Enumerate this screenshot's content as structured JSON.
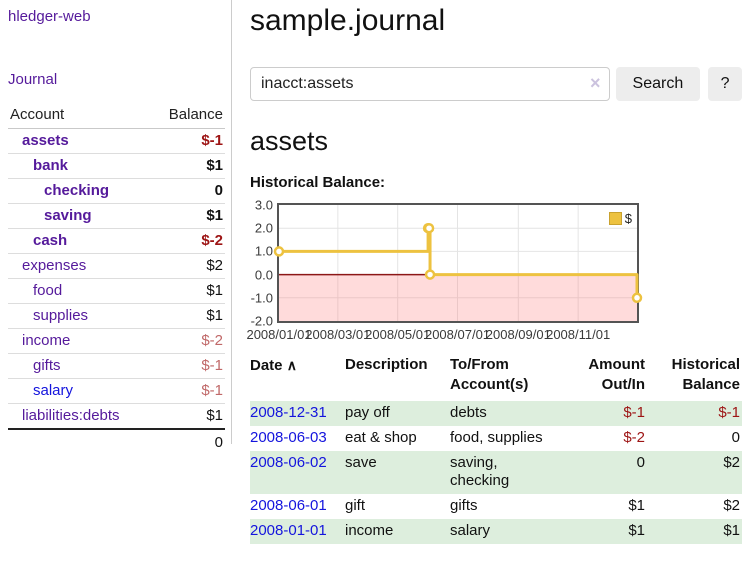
{
  "colors": {
    "accent_purple": "#551a9b",
    "link_blue": "#1414dd",
    "negative_strong": "#9d1414",
    "negative_soft": "#c06868",
    "row_green": "#ddeedd",
    "chart_gold": "#edc240",
    "chart_negative_region": "rgba(255,110,110,0.25)",
    "chart_zero_line": "#8c1717",
    "chart_grid": "#e4e4e4",
    "chart_border": "#545454"
  },
  "sidebar": {
    "brand": "hledger-web",
    "nav_journal": "Journal",
    "accounts_table": {
      "header_account": "Account",
      "header_balance": "Balance",
      "rows": [
        {
          "name": "assets",
          "balance": "$-1"
        },
        {
          "name": "bank",
          "balance": "$1"
        },
        {
          "name": "checking",
          "balance": "0"
        },
        {
          "name": "saving",
          "balance": "$1"
        },
        {
          "name": "cash",
          "balance": "$-2"
        },
        {
          "name": "expenses",
          "balance": "$2"
        },
        {
          "name": "food",
          "balance": "$1"
        },
        {
          "name": "supplies",
          "balance": "$1"
        },
        {
          "name": "income",
          "balance": "$-2"
        },
        {
          "name": "gifts",
          "balance": "$-1"
        },
        {
          "name": "salary",
          "balance": "$-1"
        },
        {
          "name": "liabilities:debts",
          "balance": "$1"
        }
      ],
      "total": "0"
    }
  },
  "header": {
    "title": "sample.journal"
  },
  "search": {
    "value": "inacct:assets",
    "clear_icon": "×",
    "button_label": "Search",
    "help_label": "?"
  },
  "account_page": {
    "heading": "assets",
    "chart_title": "Historical Balance:"
  },
  "chart_data": {
    "type": "line",
    "subtype": "step-with-markers",
    "title": "Historical Balance:",
    "xlabel": "",
    "ylabel": "",
    "grid": true,
    "legend_position": "top-right",
    "xrange": [
      "2008/01/01",
      "2008/12/31"
    ],
    "ylim": [
      -2.0,
      3.0
    ],
    "yticks": [
      {
        "label": "3.0",
        "value": 3
      },
      {
        "label": "2.0",
        "value": 2
      },
      {
        "label": "1.0",
        "value": 1
      },
      {
        "label": "0.0",
        "value": 0
      },
      {
        "label": "-1.0",
        "value": -1
      },
      {
        "label": "-2.0",
        "value": -2
      }
    ],
    "xticks": [
      {
        "label": "2008/01/01",
        "date": "2008/01/01"
      },
      {
        "label": "2008/03/01",
        "date": "2008/03/01"
      },
      {
        "label": "2008/05/01",
        "date": "2008/05/01"
      },
      {
        "label": "2008/07/01",
        "date": "2008/07/01"
      },
      {
        "label": "2008/09/01",
        "date": "2008/09/01"
      },
      {
        "label": "2008/11/01",
        "date": "2008/11/01"
      }
    ],
    "series": [
      {
        "name": "$",
        "points": [
          [
            "2008/01/01",
            1
          ],
          [
            "2008/06/01",
            2
          ],
          [
            "2008/06/02",
            2
          ],
          [
            "2008/06/03",
            0
          ],
          [
            "2008/12/31",
            -1
          ]
        ]
      }
    ],
    "colors": {
      "line": "#edc240",
      "marker_fill": "#ffffff",
      "grid": "#e4e4e4",
      "negative_region": "rgba(255,110,110,0.25)",
      "zero_line": "#8c1717"
    }
  },
  "register_table": {
    "headers": {
      "date": "Date",
      "sort_icon": "∧",
      "description": "Description",
      "accounts": "To/From Account(s)",
      "amount": "Amount Out/In",
      "balance": "Historical Balance"
    },
    "rows": [
      {
        "date": "2008-12-31",
        "description": "pay off",
        "accounts": "debts",
        "amount": "$-1",
        "balance": "$-1"
      },
      {
        "date": "2008-06-03",
        "description": "eat & shop",
        "accounts": "food, supplies",
        "amount": "$-2",
        "balance": "0"
      },
      {
        "date": "2008-06-02",
        "description": "save",
        "accounts": "saving, checking",
        "amount": "0",
        "balance": "$2"
      },
      {
        "date": "2008-06-01",
        "description": "gift",
        "accounts": "gifts",
        "amount": "$1",
        "balance": "$2"
      },
      {
        "date": "2008-01-01",
        "description": "income",
        "accounts": "salary",
        "amount": "$1",
        "balance": "$1"
      }
    ]
  }
}
